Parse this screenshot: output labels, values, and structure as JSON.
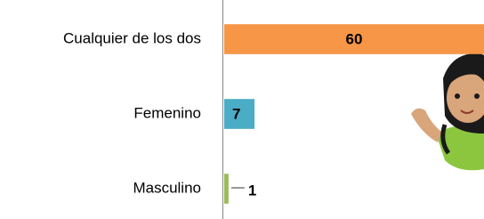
{
  "chart_data": {
    "type": "bar",
    "orientation": "horizontal",
    "categories": [
      "Cualquier de los dos",
      "Femenino",
      "Masculino"
    ],
    "values": [
      60,
      7,
      1
    ],
    "colors": [
      "#f79646",
      "#4bacc6",
      "#9bbb59"
    ],
    "xlim": [
      0,
      60
    ]
  }
}
